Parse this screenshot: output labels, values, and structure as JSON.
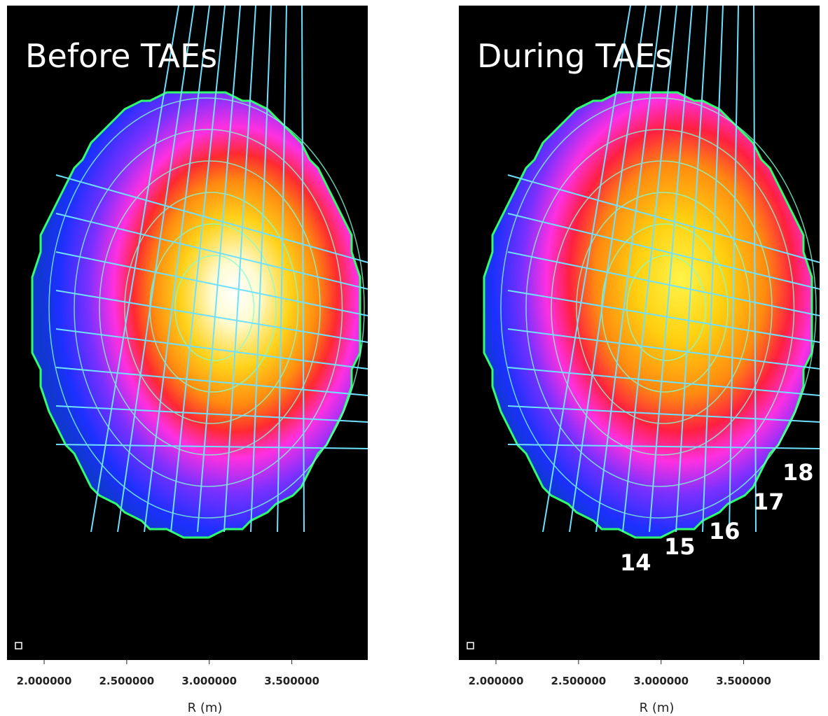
{
  "chart_data": [
    {
      "type": "image",
      "title": "Before TAEs",
      "xlabel": "R (m)",
      "xlim": [
        1.775,
        3.96
      ],
      "xticks": [
        {
          "value": 2,
          "label": "2.000000"
        },
        {
          "value": 2.5,
          "label": "2.500000"
        },
        {
          "value": 3,
          "label": "3.000000"
        },
        {
          "value": 3.5,
          "label": "3.500000"
        }
      ]
    },
    {
      "type": "image",
      "title": "During TAEs",
      "xlabel": "R (m)",
      "xlim": [
        1.775,
        3.96
      ],
      "xticks": [
        {
          "value": 2,
          "label": "2.000000"
        },
        {
          "value": 2.5,
          "label": "2.500000"
        },
        {
          "value": 3,
          "label": "3.000000"
        },
        {
          "value": 3.5,
          "label": "3.500000"
        }
      ],
      "annotations": [
        "14",
        "15",
        "16",
        "17",
        "18"
      ]
    }
  ]
}
